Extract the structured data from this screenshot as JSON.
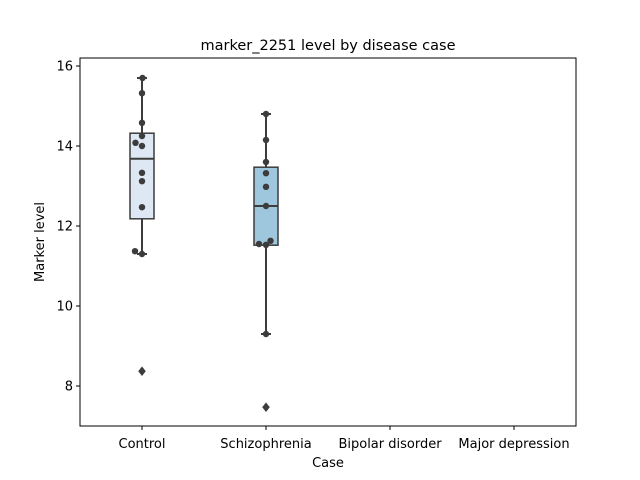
{
  "chart_data": {
    "type": "box",
    "title": "marker_2251 level by disease case",
    "xlabel": "Case",
    "ylabel": "Marker level",
    "categories": [
      "Control",
      "Schizophrenia",
      "Bipolar disorder",
      "Major depression"
    ],
    "ylim": [
      7.0,
      16.2
    ],
    "yticks": [
      8,
      10,
      12,
      14,
      16
    ],
    "grid": false,
    "boxes": [
      {
        "category": "Control",
        "color": "#dde8f4",
        "q1": 12.18,
        "median": 13.68,
        "q3": 14.32,
        "whisker_low": 11.3,
        "whisker_high": 15.7,
        "outliers": [
          8.37
        ],
        "points": [
          15.7,
          15.32,
          14.58,
          14.25,
          14.08,
          14.0,
          13.33,
          13.12,
          12.47,
          11.37,
          11.3
        ]
      },
      {
        "category": "Schizophrenia",
        "color": "#9ec6dc",
        "q1": 11.52,
        "median": 12.5,
        "q3": 13.47,
        "whisker_low": 9.3,
        "whisker_high": 14.8,
        "outliers": [
          7.47
        ],
        "points": [
          14.8,
          14.15,
          13.6,
          13.32,
          12.98,
          12.5,
          11.63,
          11.55,
          11.53,
          9.3
        ]
      }
    ],
    "colors": {
      "box_edge": "#3c3c3c",
      "point": "#3c3c3c"
    }
  }
}
